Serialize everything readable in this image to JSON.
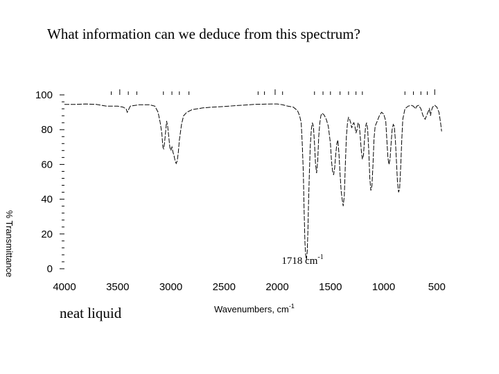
{
  "slide": {
    "question": "What information can we deduce from this spectrum?",
    "sample_note": "neat liquid"
  },
  "chart_data": {
    "type": "line",
    "title": "",
    "xlabel": "Wavenumbers, cm",
    "xlabel_superscript": "-1",
    "ylabel": "% Transmittance",
    "xlim": [
      4000,
      450
    ],
    "ylim": [
      0,
      100
    ],
    "x_ticks": [
      4000,
      3500,
      3000,
      2500,
      2000,
      1500,
      1000,
      500
    ],
    "y_ticks": [
      0,
      20,
      40,
      60,
      80,
      100
    ],
    "grid": false,
    "annotation": {
      "text": "1718 cm",
      "superscript": "-1",
      "x": 1718,
      "y": 1.5
    },
    "series": [
      {
        "name": "IR spectrum",
        "points": [
          [
            4000,
            94.5
          ],
          [
            3900,
            94.5
          ],
          [
            3800,
            94.8
          ],
          [
            3700,
            94.5
          ],
          [
            3650,
            94
          ],
          [
            3600,
            93.5
          ],
          [
            3500,
            93.5
          ],
          [
            3450,
            93
          ],
          [
            3420,
            92
          ],
          [
            3410,
            90
          ],
          [
            3400,
            91
          ],
          [
            3390,
            92.5
          ],
          [
            3380,
            93.6
          ],
          [
            3300,
            94.3
          ],
          [
            3200,
            94.3
          ],
          [
            3150,
            93.5
          ],
          [
            3120,
            90
          ],
          [
            3100,
            84
          ],
          [
            3085,
            78
          ],
          [
            3075,
            70
          ],
          [
            3068,
            69
          ],
          [
            3060,
            72
          ],
          [
            3050,
            78
          ],
          [
            3040,
            85
          ],
          [
            3030,
            82
          ],
          [
            3020,
            76
          ],
          [
            3010,
            70
          ],
          [
            3000,
            68
          ],
          [
            2990,
            70
          ],
          [
            2980,
            67
          ],
          [
            2970,
            65
          ],
          [
            2960,
            62
          ],
          [
            2950,
            60.5
          ],
          [
            2940,
            62
          ],
          [
            2930,
            67
          ],
          [
            2920,
            74
          ],
          [
            2900,
            83
          ],
          [
            2880,
            88
          ],
          [
            2850,
            90
          ],
          [
            2800,
            91.5
          ],
          [
            2700,
            92.5
          ],
          [
            2600,
            93
          ],
          [
            2500,
            93.3
          ],
          [
            2400,
            93.8
          ],
          [
            2300,
            94.2
          ],
          [
            2200,
            94.6
          ],
          [
            2100,
            94.7
          ],
          [
            2000,
            94.8
          ],
          [
            1950,
            94.3
          ],
          [
            1900,
            93.5
          ],
          [
            1850,
            93
          ],
          [
            1810,
            91
          ],
          [
            1790,
            88
          ],
          [
            1775,
            84
          ],
          [
            1765,
            72
          ],
          [
            1755,
            55
          ],
          [
            1748,
            35
          ],
          [
            1740,
            15
          ],
          [
            1733,
            8
          ],
          [
            1726,
            5
          ],
          [
            1718,
            10
          ],
          [
            1712,
            22
          ],
          [
            1705,
            40
          ],
          [
            1698,
            55
          ],
          [
            1690,
            70
          ],
          [
            1680,
            80
          ],
          [
            1670,
            84
          ],
          [
            1660,
            82
          ],
          [
            1650,
            72
          ],
          [
            1640,
            60
          ],
          [
            1630,
            55
          ],
          [
            1620,
            62
          ],
          [
            1610,
            76
          ],
          [
            1600,
            84
          ],
          [
            1590,
            88
          ],
          [
            1580,
            89.5
          ],
          [
            1560,
            88.5
          ],
          [
            1540,
            86
          ],
          [
            1520,
            82
          ],
          [
            1500,
            72
          ],
          [
            1490,
            62
          ],
          [
            1480,
            56
          ],
          [
            1470,
            54
          ],
          [
            1460,
            58
          ],
          [
            1450,
            66
          ],
          [
            1440,
            72
          ],
          [
            1430,
            74
          ],
          [
            1420,
            66
          ],
          [
            1410,
            55
          ],
          [
            1400,
            45
          ],
          [
            1390,
            40
          ],
          [
            1380,
            36
          ],
          [
            1370,
            42
          ],
          [
            1360,
            60
          ],
          [
            1350,
            76
          ],
          [
            1340,
            84
          ],
          [
            1330,
            87
          ],
          [
            1320,
            86
          ],
          [
            1310,
            84
          ],
          [
            1300,
            81
          ],
          [
            1290,
            83
          ],
          [
            1280,
            84
          ],
          [
            1270,
            82
          ],
          [
            1260,
            78
          ],
          [
            1250,
            80
          ],
          [
            1240,
            84
          ],
          [
            1230,
            83
          ],
          [
            1220,
            76
          ],
          [
            1210,
            68
          ],
          [
            1200,
            63
          ],
          [
            1190,
            65
          ],
          [
            1180,
            74
          ],
          [
            1170,
            82
          ],
          [
            1160,
            84
          ],
          [
            1150,
            80
          ],
          [
            1140,
            68
          ],
          [
            1130,
            52
          ],
          [
            1120,
            45
          ],
          [
            1110,
            48
          ],
          [
            1100,
            60
          ],
          [
            1090,
            75
          ],
          [
            1080,
            82
          ],
          [
            1060,
            85
          ],
          [
            1040,
            88
          ],
          [
            1020,
            90
          ],
          [
            1000,
            89
          ],
          [
            980,
            85
          ],
          [
            970,
            74
          ],
          [
            960,
            64
          ],
          [
            950,
            60
          ],
          [
            940,
            63
          ],
          [
            930,
            72
          ],
          [
            920,
            80
          ],
          [
            910,
            83
          ],
          [
            900,
            82
          ],
          [
            890,
            74
          ],
          [
            880,
            62
          ],
          [
            870,
            50
          ],
          [
            860,
            44
          ],
          [
            850,
            46
          ],
          [
            840,
            58
          ],
          [
            830,
            74
          ],
          [
            820,
            86
          ],
          [
            800,
            92
          ],
          [
            770,
            93.5
          ],
          [
            740,
            94
          ],
          [
            720,
            93.5
          ],
          [
            700,
            92
          ],
          [
            690,
            93.5
          ],
          [
            670,
            94
          ],
          [
            650,
            92
          ],
          [
            630,
            88
          ],
          [
            610,
            86
          ],
          [
            590,
            89
          ],
          [
            570,
            92
          ],
          [
            560,
            88
          ],
          [
            550,
            91
          ],
          [
            540,
            93
          ],
          [
            520,
            94
          ],
          [
            500,
            93
          ],
          [
            480,
            90
          ],
          [
            465,
            84
          ],
          [
            455,
            79
          ]
        ]
      }
    ],
    "peak_marks_top": [
      3560,
      3480,
      3400,
      3320,
      3070,
      2990,
      2920,
      2830,
      2180,
      2120,
      2020,
      1950,
      1650,
      1570,
      1500,
      1410,
      1330,
      1260,
      1200,
      800,
      720,
      650,
      590,
      520
    ]
  }
}
